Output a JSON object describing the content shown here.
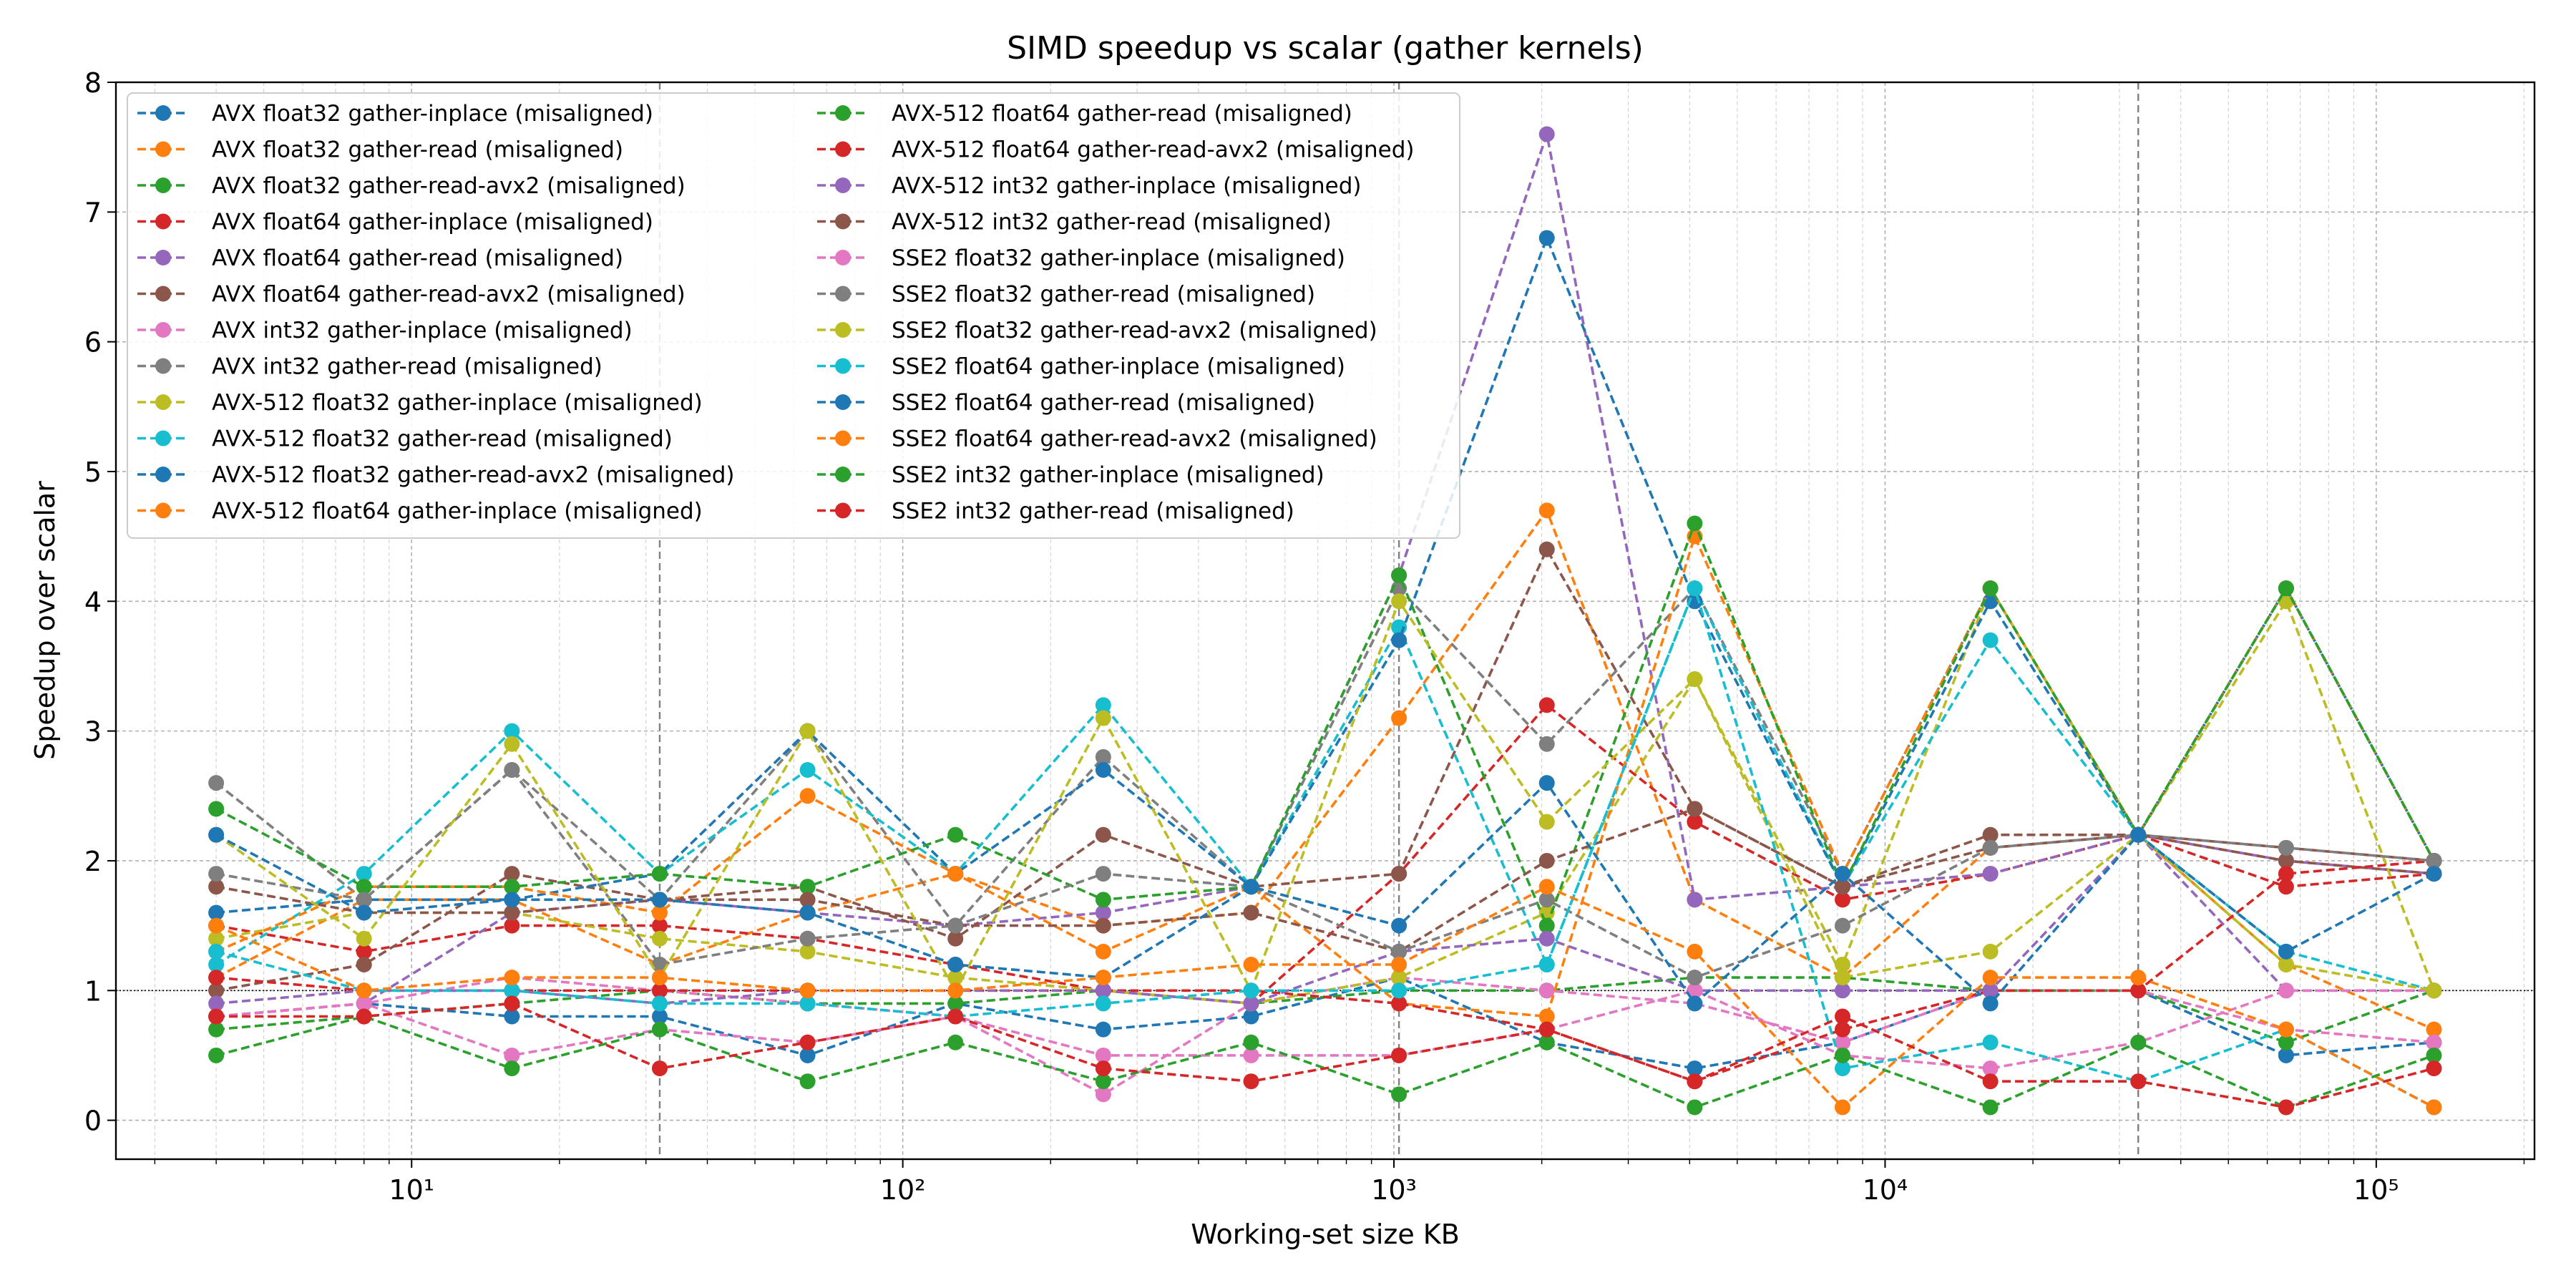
{
  "chart_data": {
    "type": "line",
    "title": "SIMD speedup vs scalar (gather kernels)",
    "xlabel": "Working-set size KB",
    "ylabel": "Speedup over scalar",
    "x_scale": "log",
    "xlim": [
      2.5,
      210000
    ],
    "ylim": [
      -0.3,
      8.0
    ],
    "yticks": [
      0,
      1,
      2,
      3,
      4,
      5,
      6,
      7,
      8
    ],
    "xticks": [
      {
        "value": 10,
        "label": "10¹"
      },
      {
        "value": 100,
        "label": "10²"
      },
      {
        "value": 1000,
        "label": "10³"
      },
      {
        "value": 10000,
        "label": "10⁴"
      },
      {
        "value": 100000,
        "label": "10⁵"
      }
    ],
    "grid": true,
    "legend_position": "upper-left",
    "reference_lines": {
      "horizontal_y": 1,
      "vertical_x": [
        32,
        1024,
        32768
      ]
    },
    "x": [
      4,
      8,
      16,
      32,
      64,
      128,
      256,
      512,
      1024,
      2048,
      4096,
      8192,
      16384,
      32768,
      65536,
      131072
    ],
    "series": [
      {
        "name": "AVX float32 gather-inplace (misaligned)",
        "color": "#1f77b4",
        "values": [
          0.8,
          0.9,
          0.8,
          0.8,
          0.5,
          0.9,
          0.7,
          0.8,
          1.1,
          0.6,
          0.4,
          0.6,
          1.0,
          1.0,
          0.5,
          0.6
        ]
      },
      {
        "name": "AVX float32 gather-read (misaligned)",
        "color": "#ff7f0e",
        "values": [
          1.1,
          1.7,
          1.7,
          1.2,
          1.6,
          1.9,
          1.5,
          1.6,
          3.1,
          4.7,
          1.7,
          1.1,
          2.1,
          2.2,
          1.2,
          0.7
        ]
      },
      {
        "name": "AVX float32 gather-read-avx2 (misaligned)",
        "color": "#2ca02c",
        "values": [
          0.7,
          0.8,
          0.9,
          1.0,
          0.9,
          0.9,
          1.0,
          0.9,
          1.0,
          1.0,
          1.1,
          1.1,
          1.0,
          1.0,
          0.6,
          1.0
        ]
      },
      {
        "name": "AVX float64 gather-inplace (misaligned)",
        "color": "#d62728",
        "values": [
          1.5,
          1.3,
          1.5,
          1.5,
          1.4,
          1.2,
          1.0,
          0.9,
          1.9,
          3.2,
          2.3,
          1.7,
          1.9,
          2.2,
          1.8,
          1.9
        ]
      },
      {
        "name": "AVX float64 gather-read (misaligned)",
        "color": "#9467bd",
        "values": [
          0.8,
          0.9,
          1.6,
          1.7,
          1.6,
          1.5,
          1.6,
          1.8,
          4.2,
          7.6,
          1.7,
          1.8,
          1.9,
          2.2,
          2.0,
          1.9
        ]
      },
      {
        "name": "AVX float64 gather-read-avx2 (misaligned)",
        "color": "#8c564b",
        "values": [
          1.0,
          1.2,
          1.9,
          1.7,
          1.8,
          1.4,
          2.2,
          1.8,
          1.9,
          4.4,
          2.4,
          1.8,
          2.2,
          2.2,
          2.0,
          1.9
        ]
      },
      {
        "name": "AVX int32 gather-inplace (misaligned)",
        "color": "#e377c2",
        "values": [
          0.8,
          0.9,
          1.1,
          1.0,
          0.9,
          0.8,
          0.2,
          0.9,
          1.1,
          1.0,
          0.9,
          0.6,
          1.0,
          1.0,
          0.7,
          0.6
        ]
      },
      {
        "name": "AVX int32 gather-read (misaligned)",
        "color": "#7f7f7f",
        "values": [
          2.6,
          1.7,
          2.7,
          1.7,
          3.0,
          1.5,
          2.8,
          1.8,
          4.1,
          2.9,
          4.1,
          1.9,
          4.1,
          2.2,
          4.1,
          2.0
        ]
      },
      {
        "name": "AVX-512 float32 gather-inplace (misaligned)",
        "color": "#bcbd22",
        "values": [
          1.4,
          1.6,
          1.6,
          1.4,
          1.3,
          1.1,
          1.0,
          0.9,
          1.1,
          1.6,
          3.4,
          1.2,
          4.1,
          2.2,
          4.0,
          1.0
        ]
      },
      {
        "name": "AVX-512 float32 gather-read (misaligned)",
        "color": "#17becf",
        "values": [
          1.2,
          1.9,
          3.0,
          1.9,
          2.7,
          1.9,
          3.2,
          1.8,
          3.8,
          1.2,
          4.1,
          1.8,
          3.7,
          2.2,
          1.3,
          1.0
        ]
      },
      {
        "name": "AVX-512 float32 gather-read-avx2 (misaligned)",
        "color": "#1f77b4",
        "values": [
          1.6,
          1.7,
          1.7,
          1.9,
          3.0,
          1.9,
          2.7,
          1.8,
          3.7,
          6.8,
          4.0,
          1.8,
          4.0,
          2.2,
          4.1,
          2.0
        ]
      },
      {
        "name": "AVX-512 float64 gather-inplace (misaligned)",
        "color": "#ff7f0e",
        "values": [
          1.3,
          1.8,
          1.8,
          1.6,
          2.5,
          1.9,
          1.3,
          1.8,
          0.9,
          0.8,
          4.5,
          1.9,
          4.1,
          2.2,
          4.1,
          2.0
        ]
      },
      {
        "name": "AVX-512 float64 gather-read (misaligned)",
        "color": "#2ca02c",
        "values": [
          2.4,
          1.8,
          1.8,
          1.9,
          1.8,
          2.2,
          1.7,
          1.8,
          4.2,
          1.5,
          4.6,
          1.8,
          4.1,
          2.2,
          4.1,
          2.0
        ]
      },
      {
        "name": "AVX-512 float64 gather-read-avx2 (misaligned)",
        "color": "#d62728",
        "values": [
          1.1,
          1.0,
          1.0,
          1.0,
          1.0,
          1.0,
          1.0,
          1.0,
          0.9,
          0.7,
          0.3,
          0.7,
          1.0,
          1.0,
          1.9,
          2.0
        ]
      },
      {
        "name": "AVX-512 int32 gather-inplace (misaligned)",
        "color": "#9467bd",
        "values": [
          0.9,
          1.0,
          1.0,
          0.9,
          1.0,
          1.0,
          1.0,
          0.9,
          1.3,
          1.4,
          1.0,
          1.0,
          1.0,
          2.2,
          1.0,
          1.0
        ]
      },
      {
        "name": "AVX-512 int32 gather-read (misaligned)",
        "color": "#8c564b",
        "values": [
          1.8,
          1.6,
          1.6,
          1.7,
          1.7,
          1.5,
          1.5,
          1.6,
          1.3,
          2.0,
          2.4,
          1.8,
          2.1,
          2.2,
          2.1,
          2.0
        ]
      },
      {
        "name": "SSE2 float32 gather-inplace (misaligned)",
        "color": "#e377c2",
        "values": [
          0.8,
          0.9,
          0.5,
          0.7,
          0.6,
          0.8,
          0.5,
          0.5,
          0.5,
          0.7,
          1.0,
          0.5,
          0.4,
          0.6,
          1.0,
          1.0
        ]
      },
      {
        "name": "SSE2 float32 gather-read (misaligned)",
        "color": "#7f7f7f",
        "values": [
          1.9,
          1.7,
          2.7,
          1.2,
          1.4,
          1.5,
          1.9,
          1.8,
          1.3,
          1.7,
          1.1,
          1.5,
          2.1,
          2.2,
          2.1,
          2.0
        ]
      },
      {
        "name": "SSE2 float32 gather-read-avx2 (misaligned)",
        "color": "#bcbd22",
        "values": [
          2.2,
          1.4,
          2.9,
          1.1,
          3.0,
          1.0,
          3.1,
          1.0,
          4.0,
          2.3,
          3.4,
          1.1,
          1.3,
          2.2,
          1.2,
          1.0
        ]
      },
      {
        "name": "SSE2 float64 gather-inplace (misaligned)",
        "color": "#17becf",
        "values": [
          1.3,
          1.0,
          1.0,
          0.9,
          0.9,
          0.8,
          0.9,
          1.0,
          1.0,
          1.2,
          4.1,
          0.4,
          0.6,
          0.3,
          0.7,
          0.1
        ]
      },
      {
        "name": "SSE2 float64 gather-read (misaligned)",
        "color": "#1f77b4",
        "values": [
          2.2,
          1.6,
          1.7,
          1.7,
          1.6,
          1.2,
          1.1,
          1.8,
          1.5,
          2.6,
          0.9,
          1.9,
          0.9,
          2.2,
          1.3,
          1.9
        ]
      },
      {
        "name": "SSE2 float64 gather-read-avx2 (misaligned)",
        "color": "#ff7f0e",
        "values": [
          1.5,
          1.0,
          1.1,
          1.1,
          1.0,
          1.0,
          1.1,
          1.2,
          1.2,
          1.8,
          1.3,
          0.1,
          1.1,
          1.1,
          0.7,
          0.1
        ]
      },
      {
        "name": "SSE2 int32 gather-inplace (misaligned)",
        "color": "#2ca02c",
        "values": [
          0.5,
          0.8,
          0.4,
          0.7,
          0.3,
          0.6,
          0.3,
          0.6,
          0.2,
          0.6,
          0.1,
          0.5,
          0.1,
          0.6,
          0.1,
          0.5
        ]
      },
      {
        "name": "SSE2 int32 gather-read (misaligned)",
        "color": "#d62728",
        "values": [
          0.8,
          0.8,
          0.9,
          0.4,
          0.6,
          0.8,
          0.4,
          0.3,
          0.5,
          0.7,
          0.3,
          0.8,
          0.3,
          0.3,
          0.1,
          0.4
        ]
      }
    ]
  }
}
